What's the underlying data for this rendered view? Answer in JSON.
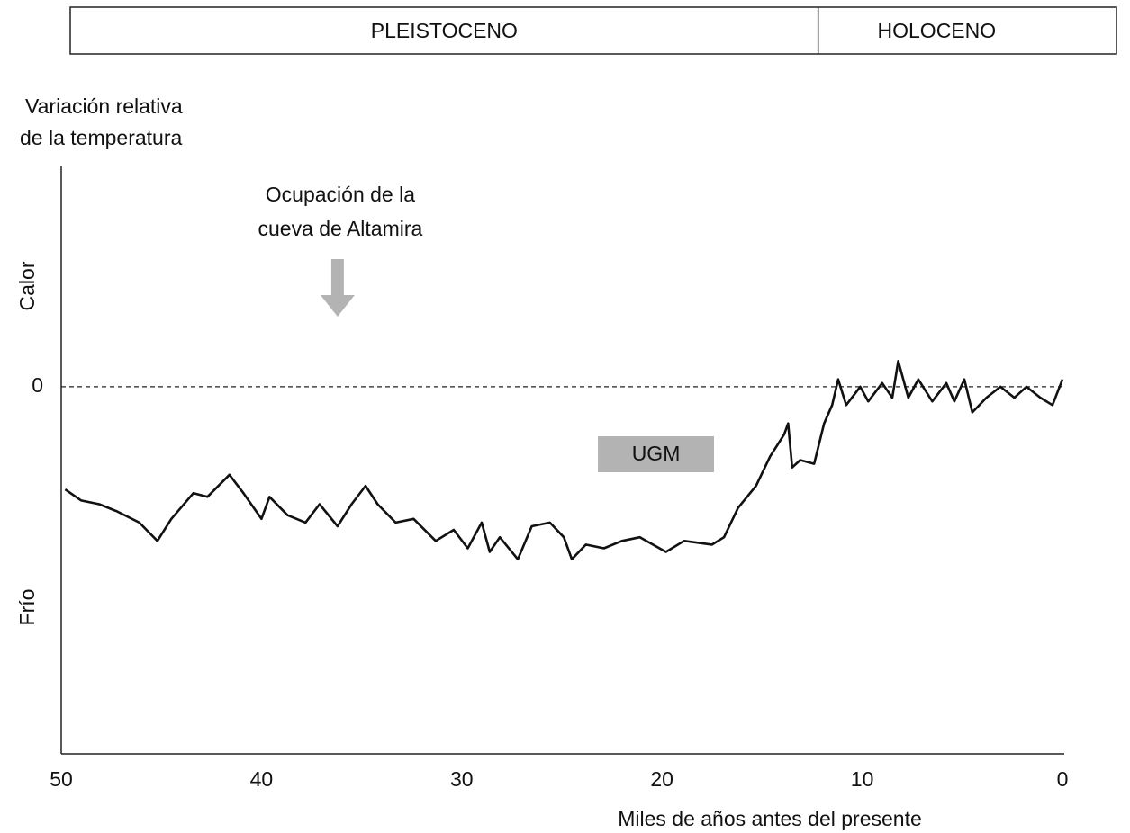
{
  "chart_data": {
    "type": "line",
    "periods": [
      {
        "label": "PLEISTOCENO"
      },
      {
        "label": "HOLOCENO"
      }
    ],
    "period_boundary": 12.2,
    "y_label": [
      "Variación relativa",
      "de la temperatura"
    ],
    "y_high_label": "Calor",
    "y_low_label": "Frío",
    "x_label": "Miles de años antes del presente",
    "annotations": [
      {
        "text": [
          "Ocupación de la",
          "cueva de Altamira"
        ],
        "x": 36.2,
        "kind": "arrow"
      },
      {
        "text": "UGM",
        "x": [
          23.2,
          17.4
        ],
        "kind": "box"
      }
    ],
    "x": [
      49.8,
      49.0,
      48.1,
      47.2,
      46.1,
      45.2,
      44.5,
      43.4,
      42.7,
      41.6,
      40.9,
      40.0,
      39.6,
      38.7,
      37.8,
      37.1,
      36.2,
      35.5,
      34.8,
      34.2,
      33.3,
      32.4,
      31.3,
      30.4,
      29.7,
      29.0,
      28.6,
      28.1,
      27.2,
      26.5,
      25.6,
      24.9,
      24.5,
      23.8,
      22.9,
      22.0,
      21.1,
      19.8,
      18.9,
      17.5,
      16.9,
      16.2,
      15.3,
      14.6,
      13.9,
      13.7,
      13.5,
      13.1,
      12.4,
      11.9,
      11.5,
      11.2,
      10.8,
      10.1,
      9.7,
      9.0,
      8.5,
      8.2,
      7.7,
      7.2,
      6.5,
      5.8,
      5.4,
      4.9,
      4.5,
      3.8,
      3.1,
      2.4,
      1.8,
      1.1,
      0.5,
      0.0
    ],
    "values": [
      -2.8,
      -3.1,
      -3.2,
      -3.4,
      -3.7,
      -4.2,
      -3.6,
      -2.9,
      -3.0,
      -2.4,
      -2.9,
      -3.6,
      -3.0,
      -3.5,
      -3.7,
      -3.2,
      -3.8,
      -3.2,
      -2.7,
      -3.2,
      -3.7,
      -3.6,
      -4.2,
      -3.9,
      -4.4,
      -3.7,
      -4.5,
      -4.1,
      -4.7,
      -3.8,
      -3.7,
      -4.1,
      -4.7,
      -4.3,
      -4.4,
      -4.2,
      -4.1,
      -4.5,
      -4.2,
      -4.3,
      -4.1,
      -3.3,
      -2.7,
      -1.9,
      -1.3,
      -1.0,
      -2.2,
      -2.0,
      -2.1,
      -1.0,
      -0.5,
      0.2,
      -0.5,
      0.0,
      -0.4,
      0.1,
      -0.3,
      0.7,
      -0.3,
      0.2,
      -0.4,
      0.1,
      -0.4,
      0.2,
      -0.7,
      -0.3,
      0.0,
      -0.3,
      0.0,
      -0.3,
      -0.5,
      0.2
    ],
    "color": "#111111",
    "xlim": [
      50,
      0
    ],
    "xticks": [
      50,
      40,
      30,
      20,
      10,
      0
    ],
    "ylim": [
      -10,
      6
    ],
    "yticks": [
      0
    ],
    "grid": true,
    "grid_style": "dashed",
    "annotation_color": "#b3b3b3"
  }
}
